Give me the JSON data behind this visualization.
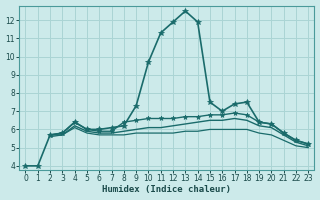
{
  "xlabel": "Humidex (Indice chaleur)",
  "background_color": "#cceaea",
  "grid_color": "#aad4d4",
  "line_color": "#1a6b6b",
  "xlim": [
    -0.5,
    23.5
  ],
  "ylim": [
    3.8,
    12.8
  ],
  "yticks": [
    4,
    5,
    6,
    7,
    8,
    9,
    10,
    11,
    12
  ],
  "xticks": [
    0,
    1,
    2,
    3,
    4,
    5,
    6,
    7,
    8,
    9,
    10,
    11,
    12,
    13,
    14,
    15,
    16,
    17,
    18,
    19,
    20,
    21,
    22,
    23
  ],
  "series": [
    {
      "x": [
        0,
        1,
        2,
        3,
        4,
        5,
        6,
        7,
        8,
        9,
        10,
        11,
        12,
        13,
        14,
        15,
        16,
        17,
        18,
        19,
        20,
        21,
        22,
        23
      ],
      "y": [
        4.0,
        4.0,
        5.7,
        5.8,
        6.4,
        6.0,
        6.0,
        6.1,
        6.2,
        7.3,
        9.7,
        11.3,
        11.9,
        12.5,
        11.9,
        7.5,
        7.0,
        7.4,
        7.5,
        6.4,
        6.3,
        5.8,
        5.4,
        5.2
      ],
      "marker": "*",
      "markersize": 4,
      "linewidth": 1.2
    },
    {
      "x": [
        2,
        3,
        4,
        5,
        6,
        7,
        8,
        9,
        10,
        11,
        12,
        13,
        14,
        15,
        16,
        17,
        18,
        19,
        20,
        21,
        22,
        23
      ],
      "y": [
        5.7,
        5.8,
        6.4,
        6.0,
        5.9,
        5.9,
        6.4,
        6.5,
        6.6,
        6.6,
        6.6,
        6.7,
        6.7,
        6.8,
        6.8,
        6.9,
        6.8,
        6.4,
        6.3,
        5.8,
        5.4,
        5.2
      ],
      "marker": "*",
      "markersize": 3.5,
      "linewidth": 1.0
    },
    {
      "x": [
        2,
        3,
        4,
        5,
        6,
        7,
        8,
        9,
        10,
        11,
        12,
        13,
        14,
        15,
        16,
        17,
        18,
        19,
        20,
        21,
        22,
        23
      ],
      "y": [
        5.7,
        5.7,
        6.2,
        5.9,
        5.8,
        5.8,
        5.9,
        6.0,
        6.1,
        6.1,
        6.2,
        6.3,
        6.4,
        6.5,
        6.5,
        6.6,
        6.5,
        6.2,
        6.1,
        5.7,
        5.3,
        5.1
      ],
      "marker": null,
      "markersize": 0,
      "linewidth": 1.0
    },
    {
      "x": [
        2,
        3,
        4,
        5,
        6,
        7,
        8,
        9,
        10,
        11,
        12,
        13,
        14,
        15,
        16,
        17,
        18,
        19,
        20,
        21,
        22,
        23
      ],
      "y": [
        5.6,
        5.7,
        6.1,
        5.8,
        5.7,
        5.7,
        5.7,
        5.8,
        5.8,
        5.8,
        5.8,
        5.9,
        5.9,
        6.0,
        6.0,
        6.0,
        6.0,
        5.8,
        5.7,
        5.4,
        5.1,
        5.0
      ],
      "marker": null,
      "markersize": 0,
      "linewidth": 0.9
    }
  ]
}
